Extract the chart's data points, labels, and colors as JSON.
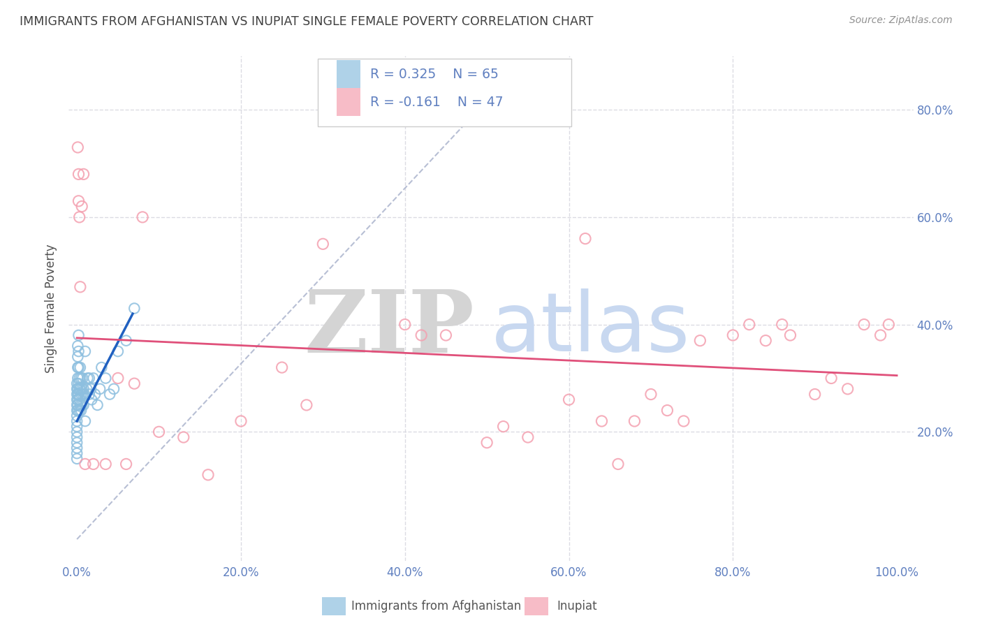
{
  "title": "IMMIGRANTS FROM AFGHANISTAN VS INUPIAT SINGLE FEMALE POVERTY CORRELATION CHART",
  "source": "Source: ZipAtlas.com",
  "ylabel": "Single Female Poverty",
  "legend_blue_r": "R = 0.325",
  "legend_blue_n": "N = 65",
  "legend_pink_r": "R = -0.161",
  "legend_pink_n": "N = 47",
  "legend_label_blue": "Immigrants from Afghanistan",
  "legend_label_pink": "Inupiat",
  "blue_scatter_x": [
    0.0,
    0.0,
    0.0,
    0.0,
    0.0,
    0.0,
    0.0,
    0.0,
    0.0,
    0.0,
    0.0,
    0.0,
    0.0,
    0.0,
    0.0,
    0.001,
    0.001,
    0.001,
    0.001,
    0.001,
    0.001,
    0.001,
    0.001,
    0.001,
    0.002,
    0.002,
    0.002,
    0.002,
    0.002,
    0.003,
    0.003,
    0.003,
    0.003,
    0.004,
    0.004,
    0.004,
    0.005,
    0.005,
    0.005,
    0.006,
    0.006,
    0.007,
    0.007,
    0.008,
    0.008,
    0.009,
    0.01,
    0.01,
    0.012,
    0.013,
    0.015,
    0.015,
    0.017,
    0.018,
    0.02,
    0.022,
    0.025,
    0.028,
    0.03,
    0.035,
    0.04,
    0.045,
    0.05,
    0.06,
    0.07
  ],
  "blue_scatter_y": [
    0.24,
    0.23,
    0.22,
    0.21,
    0.2,
    0.19,
    0.18,
    0.17,
    0.16,
    0.15,
    0.25,
    0.26,
    0.27,
    0.28,
    0.29,
    0.36,
    0.34,
    0.32,
    0.3,
    0.28,
    0.27,
    0.26,
    0.25,
    0.24,
    0.38,
    0.35,
    0.32,
    0.29,
    0.27,
    0.3,
    0.28,
    0.26,
    0.24,
    0.32,
    0.28,
    0.25,
    0.3,
    0.27,
    0.24,
    0.28,
    0.25,
    0.3,
    0.27,
    0.28,
    0.25,
    0.27,
    0.35,
    0.22,
    0.28,
    0.3,
    0.27,
    0.3,
    0.28,
    0.26,
    0.3,
    0.27,
    0.25,
    0.28,
    0.32,
    0.3,
    0.27,
    0.28,
    0.35,
    0.37,
    0.43
  ],
  "pink_scatter_x": [
    0.001,
    0.002,
    0.002,
    0.003,
    0.004,
    0.006,
    0.008,
    0.01,
    0.02,
    0.035,
    0.05,
    0.06,
    0.07,
    0.08,
    0.1,
    0.13,
    0.16,
    0.2,
    0.25,
    0.28,
    0.3,
    0.4,
    0.42,
    0.45,
    0.5,
    0.52,
    0.55,
    0.6,
    0.62,
    0.64,
    0.66,
    0.68,
    0.7,
    0.72,
    0.74,
    0.76,
    0.8,
    0.82,
    0.84,
    0.86,
    0.87,
    0.9,
    0.92,
    0.94,
    0.96,
    0.98,
    0.99
  ],
  "pink_scatter_y": [
    0.73,
    0.68,
    0.63,
    0.6,
    0.47,
    0.62,
    0.68,
    0.14,
    0.14,
    0.14,
    0.3,
    0.14,
    0.29,
    0.6,
    0.2,
    0.19,
    0.12,
    0.22,
    0.32,
    0.25,
    0.55,
    0.4,
    0.38,
    0.38,
    0.18,
    0.21,
    0.19,
    0.26,
    0.56,
    0.22,
    0.14,
    0.22,
    0.27,
    0.24,
    0.22,
    0.37,
    0.38,
    0.4,
    0.37,
    0.4,
    0.38,
    0.27,
    0.3,
    0.28,
    0.4,
    0.38,
    0.4
  ],
  "blue_line_x": [
    0.0,
    0.068
  ],
  "blue_line_y": [
    0.22,
    0.42
  ],
  "pink_line_x": [
    0.0,
    1.0
  ],
  "pink_line_y": [
    0.375,
    0.305
  ],
  "diag_line_x": [
    0.0,
    0.52
  ],
  "diag_line_y": [
    0.0,
    0.85
  ],
  "blue_color": "#8dbfdf",
  "pink_color": "#f4a0b0",
  "blue_line_color": "#2060c0",
  "pink_line_color": "#e0507a",
  "diag_line_color": "#b0b8d0",
  "watermark_zip_color": "#d4d4d4",
  "watermark_atlas_color": "#c8d8f0",
  "title_color": "#404040",
  "axis_label_color": "#6080c0",
  "grid_color": "#d8d8e0",
  "background_color": "#ffffff",
  "xlim": [
    -0.01,
    1.02
  ],
  "ylim": [
    -0.04,
    0.9
  ],
  "ytick_positions": [
    0.0,
    0.2,
    0.4,
    0.6,
    0.8
  ],
  "xtick_positions": [
    0.0,
    0.2,
    0.4,
    0.6,
    0.8,
    1.0
  ],
  "xtick_labels": [
    "0.0%",
    "20.0%",
    "40.0%",
    "60.0%",
    "80.0%",
    "100.0%"
  ],
  "ytick_labels_right": [
    "",
    "20.0%",
    "40.0%",
    "60.0%",
    "80.0%"
  ]
}
